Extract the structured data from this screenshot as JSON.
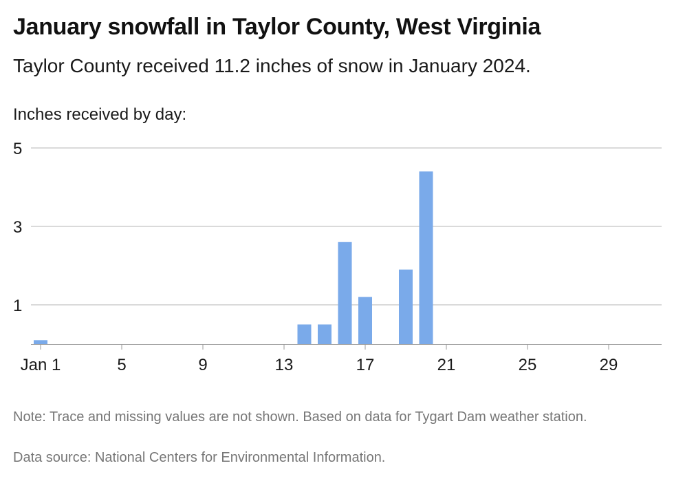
{
  "header": {
    "title": "January snowfall in Taylor County, West Virginia",
    "subtitle": "Taylor County received 11.2 inches of snow in January 2024.",
    "chart_label": "Inches received by day:"
  },
  "footer": {
    "note": "Note: Trace and missing values are not shown. Based on data for Tygart Dam weather station.",
    "source": "Data source: National Centers for Environmental Information."
  },
  "chart_data": {
    "type": "bar",
    "title": "January snowfall in Taylor County, West Virginia",
    "subtitle": "Taylor County received 11.2 inches of snow in January 2024.",
    "ylabel": "Inches received by day:",
    "xlabel": "",
    "categories": [
      "1",
      "2",
      "3",
      "4",
      "5",
      "6",
      "7",
      "8",
      "9",
      "10",
      "11",
      "12",
      "13",
      "14",
      "15",
      "16",
      "17",
      "18",
      "19",
      "20",
      "21",
      "22",
      "23",
      "24",
      "25",
      "26",
      "27",
      "28",
      "29",
      "30",
      "31"
    ],
    "values": [
      0.1,
      0,
      0,
      0,
      0,
      0,
      0,
      0,
      0,
      0,
      0,
      0,
      0,
      0.5,
      0.5,
      2.6,
      1.2,
      0,
      1.9,
      4.4,
      0,
      0,
      0,
      0,
      0,
      0,
      0,
      0,
      0,
      0,
      0
    ],
    "x_ticks": [
      {
        "day": 1,
        "label": "Jan 1"
      },
      {
        "day": 5,
        "label": "5"
      },
      {
        "day": 9,
        "label": "9"
      },
      {
        "day": 13,
        "label": "13"
      },
      {
        "day": 17,
        "label": "17"
      },
      {
        "day": 21,
        "label": "21"
      },
      {
        "day": 25,
        "label": "25"
      },
      {
        "day": 29,
        "label": "29"
      }
    ],
    "y_ticks": [
      1,
      3,
      5
    ],
    "ylim": [
      0,
      5
    ],
    "grid": true,
    "bar_color": "#7aaaea"
  }
}
